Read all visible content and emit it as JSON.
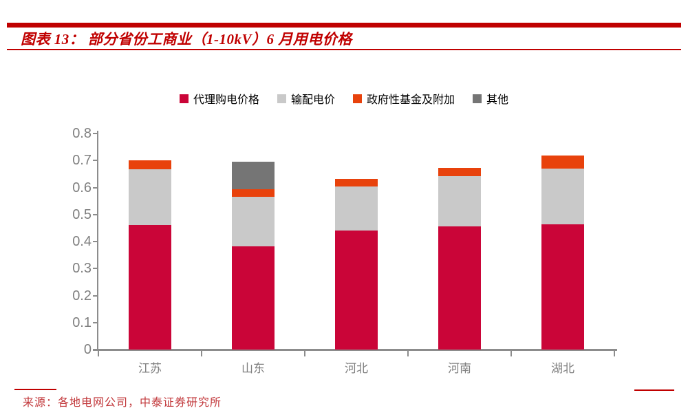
{
  "figure": {
    "title": "图表 13： 部分省份工商业（1-10kV）6 月用电价格",
    "source": "来源：各地电网公司，中泰证券研究所"
  },
  "colors": {
    "accent_red": "#c00000",
    "source_red": "#c2383b",
    "axis_line_gray": "#8c8c8c",
    "axis_label_gray": "#7f7f7f"
  },
  "chart_data": {
    "type": "bar",
    "stacked": true,
    "title": "部分省份工商业（1-10kV）6 月用电价格",
    "xlabel": "",
    "ylabel": "",
    "categories": [
      "江苏",
      "山东",
      "河北",
      "河南",
      "湖北"
    ],
    "series": [
      {
        "name": "代理购电价格",
        "color": "#ca0538",
        "values": [
          0.46,
          0.383,
          0.44,
          0.457,
          0.463
        ]
      },
      {
        "name": "输配电价",
        "color": "#c9c9c9",
        "values": [
          0.208,
          0.182,
          0.165,
          0.184,
          0.207
        ]
      },
      {
        "name": "政府性基金及附加",
        "color": "#e8420c",
        "values": [
          0.033,
          0.03,
          0.027,
          0.032,
          0.049
        ]
      },
      {
        "name": "其他",
        "color": "#757575",
        "values": [
          0.0,
          0.1,
          0.0,
          0.0,
          0.0
        ]
      }
    ],
    "totals": [
      0.701,
      0.695,
      0.632,
      0.673,
      0.719
    ],
    "ylim": [
      0,
      0.8
    ],
    "yticks": [
      "0.8",
      "0.7",
      "0.6",
      "0.5",
      "0.4",
      "0.3",
      "0.2",
      "0.1",
      "0"
    ],
    "grid": false,
    "legend_position": "top"
  }
}
